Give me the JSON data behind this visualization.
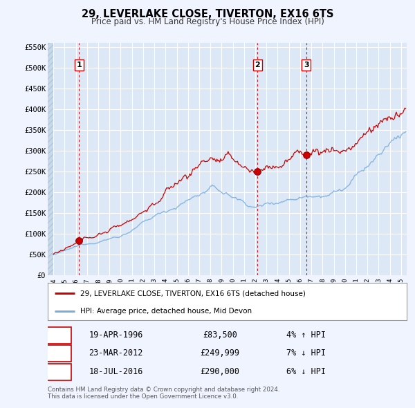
{
  "title": "29, LEVERLAKE CLOSE, TIVERTON, EX16 6TS",
  "subtitle": "Price paid vs. HM Land Registry's House Price Index (HPI)",
  "line1_label": "29, LEVERLAKE CLOSE, TIVERTON, EX16 6TS (detached house)",
  "line2_label": "HPI: Average price, detached house, Mid Devon",
  "line1_color": "#cc0000",
  "line2_color": "#7aaddd",
  "background_color": "#f0f4ff",
  "plot_bg_color": "#dce8f5",
  "hatch_color": "#c8d8e8",
  "grid_color": "#ffffff",
  "ylim": [
    0,
    560000
  ],
  "yticks": [
    0,
    50000,
    100000,
    150000,
    200000,
    250000,
    300000,
    350000,
    400000,
    450000,
    500000,
    550000
  ],
  "ytick_labels": [
    "£0",
    "£50K",
    "£100K",
    "£150K",
    "£200K",
    "£250K",
    "£300K",
    "£350K",
    "£400K",
    "£450K",
    "£500K",
    "£550K"
  ],
  "sales": [
    {
      "num": 1,
      "date": "19-APR-1996",
      "price": 83500,
      "year": 1996.3,
      "pct": "4%",
      "dir": "↑"
    },
    {
      "num": 2,
      "date": "23-MAR-2012",
      "price": 249999,
      "year": 2012.2,
      "pct": "7%",
      "dir": "↓"
    },
    {
      "num": 3,
      "date": "18-JUL-2016",
      "price": 290000,
      "year": 2016.55,
      "pct": "6%",
      "dir": "↓"
    }
  ],
  "footer1": "Contains HM Land Registry data © Crown copyright and database right 2024.",
  "footer2": "This data is licensed under the Open Government Licence v3.0.",
  "xmin": 1993.5,
  "xmax": 2025.5
}
